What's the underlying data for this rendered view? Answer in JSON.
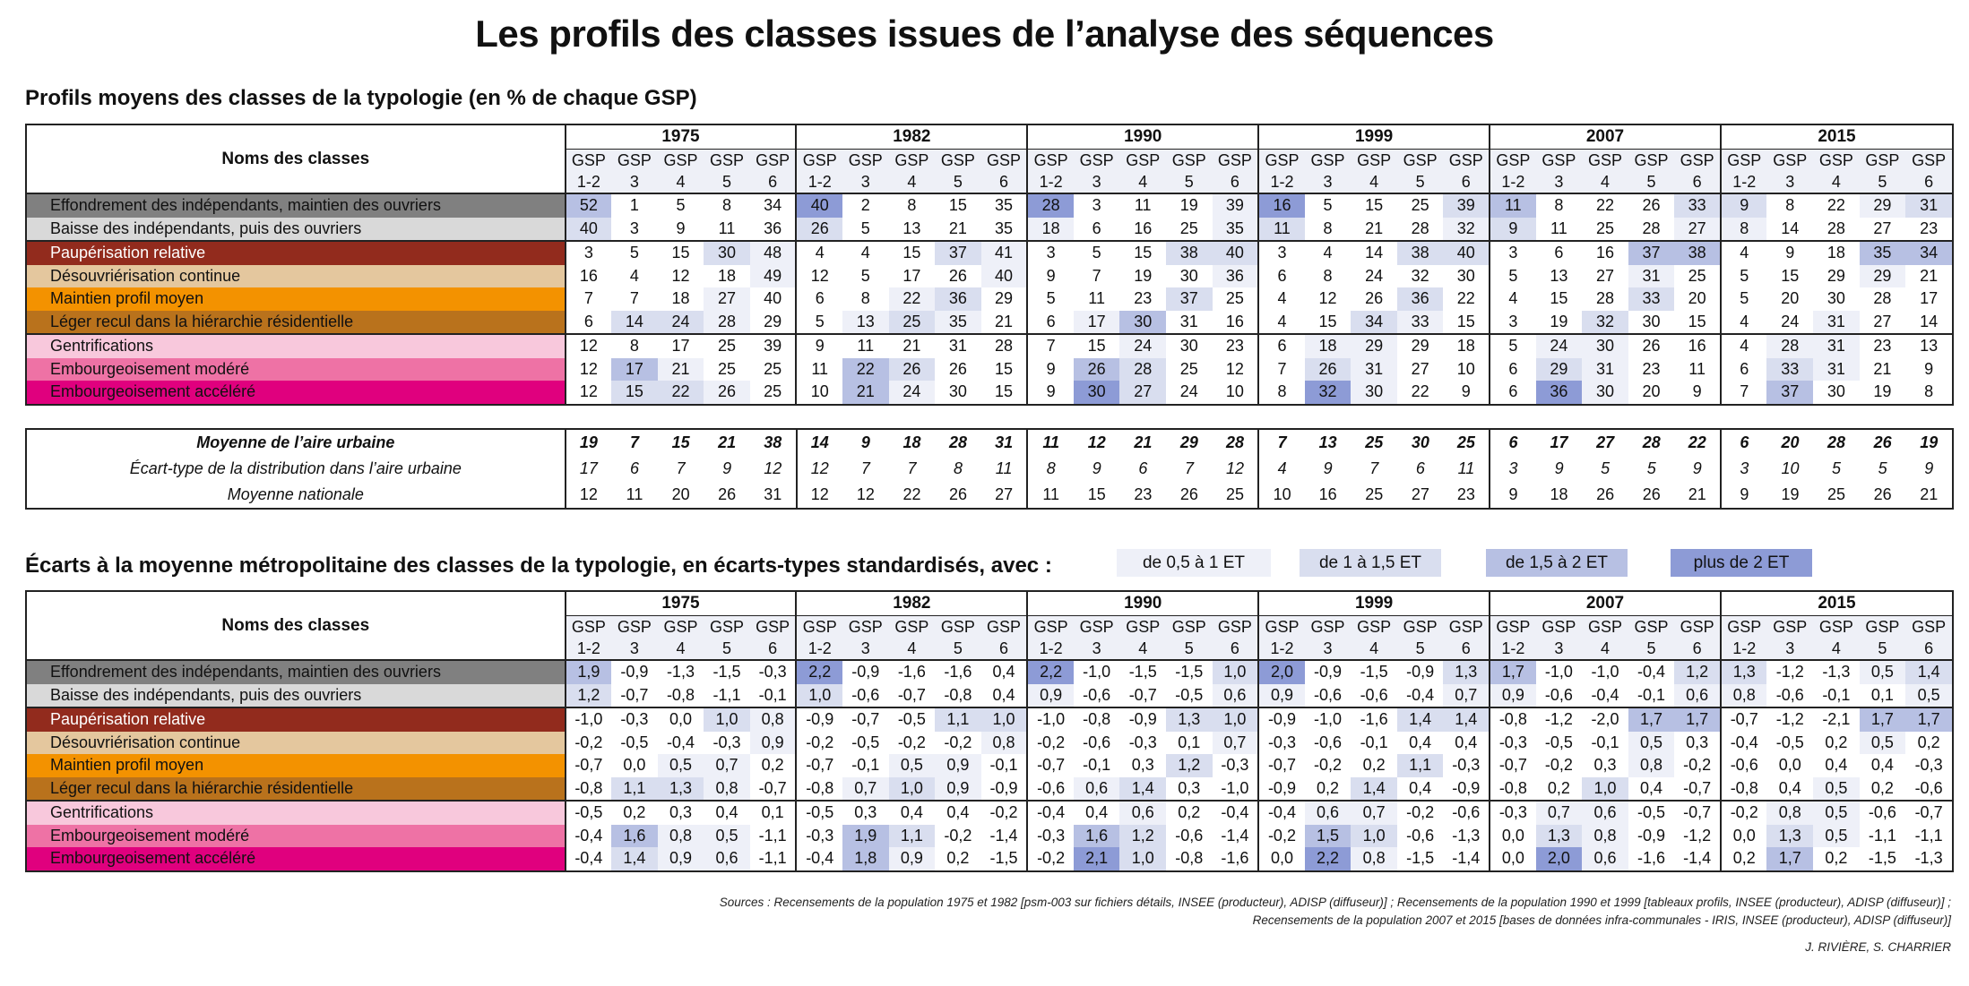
{
  "title": "Les profils des classes issues de l’analyse des séquences",
  "section1_title": "Profils moyens des classes de la typologie (en % de chaque GSP)",
  "section2_title": "Écarts à la moyenne métropolitaine des classes de la typologie, en écarts-types standardisés, avec :",
  "legend": [
    {
      "label": "de 0,5 à 1 ET",
      "color": "#eef0f8"
    },
    {
      "label": "de 1 à 1,5 ET",
      "color": "#d9deef"
    },
    {
      "label": "de 1,5 à 2 ET",
      "color": "#b7c0e3"
    },
    {
      "label": "plus de 2 ET",
      "color": "#8d9bd6"
    }
  ],
  "names_header": "Noms des classes",
  "years": [
    "1975",
    "1982",
    "1990",
    "1999",
    "2007",
    "2015"
  ],
  "gsp_top": [
    "GSP",
    "GSP",
    "GSP",
    "GSP",
    "GSP"
  ],
  "gsp_bottom": [
    "1-2",
    "3",
    "4",
    "5",
    "6"
  ],
  "classes": [
    {
      "name": "Effondrement des indépendants, maintien des ouvriers",
      "bg": "#808080",
      "fg": "#111111"
    },
    {
      "name": "Baisse des indépendants, puis des ouvriers",
      "bg": "#d9d9d9",
      "fg": "#111111"
    },
    {
      "name": "Paupérisation relative",
      "bg": "#922b1d",
      "fg": "#ffffff"
    },
    {
      "name": "Désouvriérisation continue",
      "bg": "#e4c79e",
      "fg": "#111111"
    },
    {
      "name": "Maintien profil moyen",
      "bg": "#f39200",
      "fg": "#111111"
    },
    {
      "name": "Léger recul dans la hiérarchie résidentielle",
      "bg": "#b9721c",
      "fg": "#111111"
    },
    {
      "name": "Gentrifications",
      "bg": "#f8c8dc",
      "fg": "#111111"
    },
    {
      "name": "Embourgeoisement modéré",
      "bg": "#ee72a5",
      "fg": "#111111"
    },
    {
      "name": "Embourgeoisement accéléré",
      "bg": "#e0007e",
      "fg": "#111111"
    }
  ],
  "profiles": [
    [
      "52",
      "1",
      "5",
      "8",
      "34",
      "40",
      "2",
      "8",
      "15",
      "35",
      "28",
      "3",
      "11",
      "19",
      "39",
      "16",
      "5",
      "15",
      "25",
      "39",
      "11",
      "8",
      "22",
      "26",
      "33",
      "9",
      "8",
      "22",
      "29",
      "31"
    ],
    [
      "40",
      "3",
      "9",
      "11",
      "36",
      "26",
      "5",
      "13",
      "21",
      "35",
      "18",
      "6",
      "16",
      "25",
      "35",
      "11",
      "8",
      "21",
      "28",
      "32",
      "9",
      "11",
      "25",
      "28",
      "27",
      "8",
      "14",
      "28",
      "27",
      "23"
    ],
    [
      "3",
      "5",
      "15",
      "30",
      "48",
      "4",
      "4",
      "15",
      "37",
      "41",
      "3",
      "5",
      "15",
      "38",
      "40",
      "3",
      "4",
      "14",
      "38",
      "40",
      "3",
      "6",
      "16",
      "37",
      "38",
      "4",
      "9",
      "18",
      "35",
      "34"
    ],
    [
      "16",
      "4",
      "12",
      "18",
      "49",
      "12",
      "5",
      "17",
      "26",
      "40",
      "9",
      "7",
      "19",
      "30",
      "36",
      "6",
      "8",
      "24",
      "32",
      "30",
      "5",
      "13",
      "27",
      "31",
      "25",
      "5",
      "15",
      "29",
      "29",
      "21"
    ],
    [
      "7",
      "7",
      "18",
      "27",
      "40",
      "6",
      "8",
      "22",
      "36",
      "29",
      "5",
      "11",
      "23",
      "37",
      "25",
      "4",
      "12",
      "26",
      "36",
      "22",
      "4",
      "15",
      "28",
      "33",
      "20",
      "5",
      "20",
      "30",
      "28",
      "17"
    ],
    [
      "6",
      "14",
      "24",
      "28",
      "29",
      "5",
      "13",
      "25",
      "35",
      "21",
      "6",
      "17",
      "30",
      "31",
      "16",
      "4",
      "15",
      "34",
      "33",
      "15",
      "3",
      "19",
      "32",
      "30",
      "15",
      "4",
      "24",
      "31",
      "27",
      "14"
    ],
    [
      "12",
      "8",
      "17",
      "25",
      "39",
      "9",
      "11",
      "21",
      "31",
      "28",
      "7",
      "15",
      "24",
      "30",
      "23",
      "6",
      "18",
      "29",
      "29",
      "18",
      "5",
      "24",
      "30",
      "26",
      "16",
      "4",
      "28",
      "31",
      "23",
      "13"
    ],
    [
      "12",
      "17",
      "21",
      "25",
      "25",
      "11",
      "22",
      "26",
      "26",
      "15",
      "9",
      "26",
      "28",
      "25",
      "12",
      "7",
      "26",
      "31",
      "27",
      "10",
      "6",
      "29",
      "31",
      "23",
      "11",
      "6",
      "33",
      "31",
      "21",
      "9"
    ],
    [
      "12",
      "15",
      "22",
      "26",
      "25",
      "10",
      "21",
      "24",
      "30",
      "15",
      "9",
      "30",
      "27",
      "24",
      "10",
      "8",
      "32",
      "30",
      "22",
      "9",
      "6",
      "36",
      "30",
      "20",
      "9",
      "7",
      "37",
      "30",
      "19",
      "8"
    ]
  ],
  "stats": [
    {
      "label": "Moyenne de l’aire urbaine",
      "values": [
        "19",
        "7",
        "15",
        "21",
        "38",
        "14",
        "9",
        "18",
        "28",
        "31",
        "11",
        "12",
        "21",
        "29",
        "28",
        "7",
        "13",
        "25",
        "30",
        "25",
        "6",
        "17",
        "27",
        "28",
        "22",
        "6",
        "20",
        "28",
        "26",
        "19"
      ]
    },
    {
      "label": "Écart-type de la distribution dans l’aire urbaine",
      "values": [
        "17",
        "6",
        "7",
        "9",
        "12",
        "12",
        "7",
        "7",
        "8",
        "11",
        "8",
        "9",
        "6",
        "7",
        "12",
        "4",
        "9",
        "7",
        "6",
        "11",
        "3",
        "9",
        "5",
        "5",
        "9",
        "3",
        "10",
        "5",
        "5",
        "9"
      ]
    },
    {
      "label": "Moyenne nationale",
      "values": [
        "12",
        "11",
        "20",
        "26",
        "31",
        "12",
        "12",
        "22",
        "26",
        "27",
        "11",
        "15",
        "23",
        "26",
        "25",
        "10",
        "16",
        "25",
        "27",
        "23",
        "9",
        "18",
        "26",
        "26",
        "21",
        "9",
        "19",
        "25",
        "26",
        "21"
      ]
    }
  ],
  "deviations": [
    [
      "1,9",
      "-0,9",
      "-1,3",
      "-1,5",
      "-0,3",
      "2,2",
      "-0,9",
      "-1,6",
      "-1,6",
      "0,4",
      "2,2",
      "-1,0",
      "-1,5",
      "-1,5",
      "1,0",
      "2,0",
      "-0,9",
      "-1,5",
      "-0,9",
      "1,3",
      "1,7",
      "-1,0",
      "-1,0",
      "-0,4",
      "1,2",
      "1,3",
      "-1,2",
      "-1,3",
      "0,5",
      "1,4"
    ],
    [
      "1,2",
      "-0,7",
      "-0,8",
      "-1,1",
      "-0,1",
      "1,0",
      "-0,6",
      "-0,7",
      "-0,8",
      "0,4",
      "0,9",
      "-0,6",
      "-0,7",
      "-0,5",
      "0,6",
      "0,9",
      "-0,6",
      "-0,6",
      "-0,4",
      "0,7",
      "0,9",
      "-0,6",
      "-0,4",
      "-0,1",
      "0,6",
      "0,8",
      "-0,6",
      "-0,1",
      "0,1",
      "0,5"
    ],
    [
      "-1,0",
      "-0,3",
      "0,0",
      "1,0",
      "0,8",
      "-0,9",
      "-0,7",
      "-0,5",
      "1,1",
      "1,0",
      "-1,0",
      "-0,8",
      "-0,9",
      "1,3",
      "1,0",
      "-0,9",
      "-1,0",
      "-1,6",
      "1,4",
      "1,4",
      "-0,8",
      "-1,2",
      "-2,0",
      "1,7",
      "1,7",
      "-0,7",
      "-1,2",
      "-2,1",
      "1,7",
      "1,7"
    ],
    [
      "-0,2",
      "-0,5",
      "-0,4",
      "-0,3",
      "0,9",
      "-0,2",
      "-0,5",
      "-0,2",
      "-0,2",
      "0,8",
      "-0,2",
      "-0,6",
      "-0,3",
      "0,1",
      "0,7",
      "-0,3",
      "-0,6",
      "-0,1",
      "0,4",
      "0,4",
      "-0,3",
      "-0,5",
      "-0,1",
      "0,5",
      "0,3",
      "-0,4",
      "-0,5",
      "0,2",
      "0,5",
      "0,2"
    ],
    [
      "-0,7",
      "0,0",
      "0,5",
      "0,7",
      "0,2",
      "-0,7",
      "-0,1",
      "0,5",
      "0,9",
      "-0,1",
      "-0,7",
      "-0,1",
      "0,3",
      "1,2",
      "-0,3",
      "-0,7",
      "-0,2",
      "0,2",
      "1,1",
      "-0,3",
      "-0,7",
      "-0,2",
      "0,3",
      "0,8",
      "-0,2",
      "-0,6",
      "0,0",
      "0,4",
      "0,4",
      "-0,3"
    ],
    [
      "-0,8",
      "1,1",
      "1,3",
      "0,8",
      "-0,7",
      "-0,8",
      "0,7",
      "1,0",
      "0,9",
      "-0,9",
      "-0,6",
      "0,6",
      "1,4",
      "0,3",
      "-1,0",
      "-0,9",
      "0,2",
      "1,4",
      "0,4",
      "-0,9",
      "-0,8",
      "0,2",
      "1,0",
      "0,4",
      "-0,7",
      "-0,8",
      "0,4",
      "0,5",
      "0,2",
      "-0,6"
    ],
    [
      "-0,5",
      "0,2",
      "0,3",
      "0,4",
      "0,1",
      "-0,5",
      "0,3",
      "0,4",
      "0,4",
      "-0,2",
      "-0,4",
      "0,4",
      "0,6",
      "0,2",
      "-0,4",
      "-0,4",
      "0,6",
      "0,7",
      "-0,2",
      "-0,6",
      "-0,3",
      "0,7",
      "0,6",
      "-0,5",
      "-0,7",
      "-0,2",
      "0,8",
      "0,5",
      "-0,6",
      "-0,7"
    ],
    [
      "-0,4",
      "1,6",
      "0,8",
      "0,5",
      "-1,1",
      "-0,3",
      "1,9",
      "1,1",
      "-0,2",
      "-1,4",
      "-0,3",
      "1,6",
      "1,2",
      "-0,6",
      "-1,4",
      "-0,2",
      "1,5",
      "1,0",
      "-0,6",
      "-1,3",
      "0,0",
      "1,3",
      "0,8",
      "-0,9",
      "-1,2",
      "0,0",
      "1,3",
      "0,5",
      "-1,1",
      "-1,1"
    ],
    [
      "-0,4",
      "1,4",
      "0,9",
      "0,6",
      "-1,1",
      "-0,4",
      "1,8",
      "0,9",
      "0,2",
      "-1,5",
      "-0,2",
      "2,1",
      "1,0",
      "-0,8",
      "-1,6",
      "0,0",
      "2,2",
      "0,8",
      "-1,5",
      "-1,4",
      "0,0",
      "2,0",
      "0,6",
      "-1,6",
      "-1,4",
      "0,2",
      "1,7",
      "0,2",
      "-1,5",
      "-1,3"
    ]
  ],
  "sources": "Sources : Recensements de la population 1975 et 1982 [psm-003 sur fichiers détails, INSEE (producteur), ADISP (diffuseur)] ; Recensements de la population 1990 et 1999 [tableaux profils, INSEE (producteur), ADISP (diffuseur)] ; Recensements de la population 2007 et 2015 [bases de données infra-communales - IRIS, INSEE (producteur), ADISP (diffuseur)]",
  "authors": "J. RIVIÈRE, S. CHARRIER"
}
